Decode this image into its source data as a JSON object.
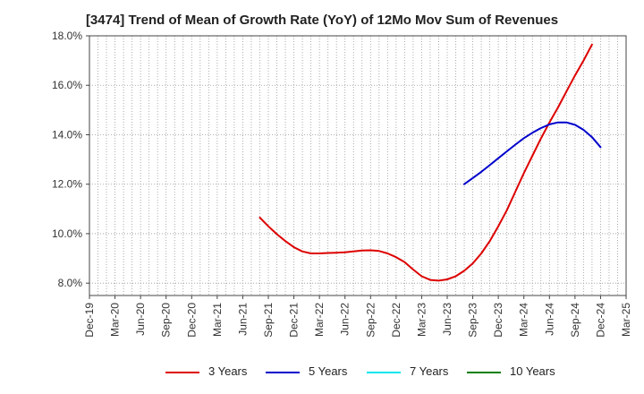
{
  "chart_data": {
    "type": "line",
    "title": "[3474]  Trend of Mean of Growth Rate (YoY) of 12Mo Mov Sum of Revenues",
    "xlabel": "",
    "ylabel": "",
    "x_ticks": [
      "Dec-19",
      "Mar-20",
      "Jun-20",
      "Sep-20",
      "Dec-20",
      "Mar-21",
      "Jun-21",
      "Sep-21",
      "Dec-21",
      "Mar-22",
      "Jun-22",
      "Sep-22",
      "Dec-22",
      "Mar-23",
      "Jun-23",
      "Sep-23",
      "Dec-23",
      "Mar-24",
      "Jun-24",
      "Sep-24",
      "Dec-24",
      "Mar-25"
    ],
    "y_ticks": [
      "8.0%",
      "10.0%",
      "12.0%",
      "14.0%",
      "16.0%",
      "18.0%"
    ],
    "ylim": [
      7.5,
      18.0
    ],
    "y_unit": "%",
    "grid": true,
    "legend_position": "bottom",
    "series": [
      {
        "name": "3 Years",
        "color": "#dd0000",
        "points": [
          {
            "x": "Aug-21",
            "y": 10.65
          },
          {
            "x": "Sep-21",
            "y": 10.3
          },
          {
            "x": "Oct-21",
            "y": 9.98
          },
          {
            "x": "Nov-21",
            "y": 9.7
          },
          {
            "x": "Dec-21",
            "y": 9.45
          },
          {
            "x": "Jan-22",
            "y": 9.28
          },
          {
            "x": "Feb-22",
            "y": 9.2
          },
          {
            "x": "Mar-22",
            "y": 9.2
          },
          {
            "x": "Apr-22",
            "y": 9.22
          },
          {
            "x": "May-22",
            "y": 9.23
          },
          {
            "x": "Jun-22",
            "y": 9.25
          },
          {
            "x": "Jul-22",
            "y": 9.28
          },
          {
            "x": "Aug-22",
            "y": 9.32
          },
          {
            "x": "Sep-22",
            "y": 9.33
          },
          {
            "x": "Oct-22",
            "y": 9.3
          },
          {
            "x": "Nov-22",
            "y": 9.2
          },
          {
            "x": "Dec-22",
            "y": 9.05
          },
          {
            "x": "Jan-23",
            "y": 8.85
          },
          {
            "x": "Feb-23",
            "y": 8.55
          },
          {
            "x": "Mar-23",
            "y": 8.28
          },
          {
            "x": "Apr-23",
            "y": 8.13
          },
          {
            "x": "May-23",
            "y": 8.1
          },
          {
            "x": "Jun-23",
            "y": 8.15
          },
          {
            "x": "Jul-23",
            "y": 8.28
          },
          {
            "x": "Aug-23",
            "y": 8.5
          },
          {
            "x": "Sep-23",
            "y": 8.8
          },
          {
            "x": "Oct-23",
            "y": 9.2
          },
          {
            "x": "Nov-23",
            "y": 9.7
          },
          {
            "x": "Dec-23",
            "y": 10.3
          },
          {
            "x": "Jan-24",
            "y": 10.95
          },
          {
            "x": "Feb-24",
            "y": 11.7
          },
          {
            "x": "Mar-24",
            "y": 12.45
          },
          {
            "x": "Apr-24",
            "y": 13.15
          },
          {
            "x": "May-24",
            "y": 13.85
          },
          {
            "x": "Jun-24",
            "y": 14.5
          },
          {
            "x": "Jul-24",
            "y": 15.1
          },
          {
            "x": "Aug-24",
            "y": 15.75
          },
          {
            "x": "Sep-24",
            "y": 16.4
          },
          {
            "x": "Oct-24",
            "y": 17.0
          },
          {
            "x": "Nov-24",
            "y": 17.65
          }
        ]
      },
      {
        "name": "5 Years",
        "color": "#0000cc",
        "points": [
          {
            "x": "Aug-23",
            "y": 12.0
          },
          {
            "x": "Sep-23",
            "y": 12.25
          },
          {
            "x": "Oct-23",
            "y": 12.5
          },
          {
            "x": "Nov-23",
            "y": 12.77
          },
          {
            "x": "Dec-23",
            "y": 13.05
          },
          {
            "x": "Jan-24",
            "y": 13.33
          },
          {
            "x": "Feb-24",
            "y": 13.6
          },
          {
            "x": "Mar-24",
            "y": 13.86
          },
          {
            "x": "Apr-24",
            "y": 14.08
          },
          {
            "x": "May-24",
            "y": 14.27
          },
          {
            "x": "Jun-24",
            "y": 14.42
          },
          {
            "x": "Jul-24",
            "y": 14.5
          },
          {
            "x": "Aug-24",
            "y": 14.5
          },
          {
            "x": "Sep-24",
            "y": 14.4
          },
          {
            "x": "Oct-24",
            "y": 14.2
          },
          {
            "x": "Nov-24",
            "y": 13.9
          },
          {
            "x": "Dec-24",
            "y": 13.5
          }
        ]
      },
      {
        "name": "7 Years",
        "color": "#00e5ee",
        "points": []
      },
      {
        "name": "10 Years",
        "color": "#008000",
        "points": []
      }
    ]
  }
}
